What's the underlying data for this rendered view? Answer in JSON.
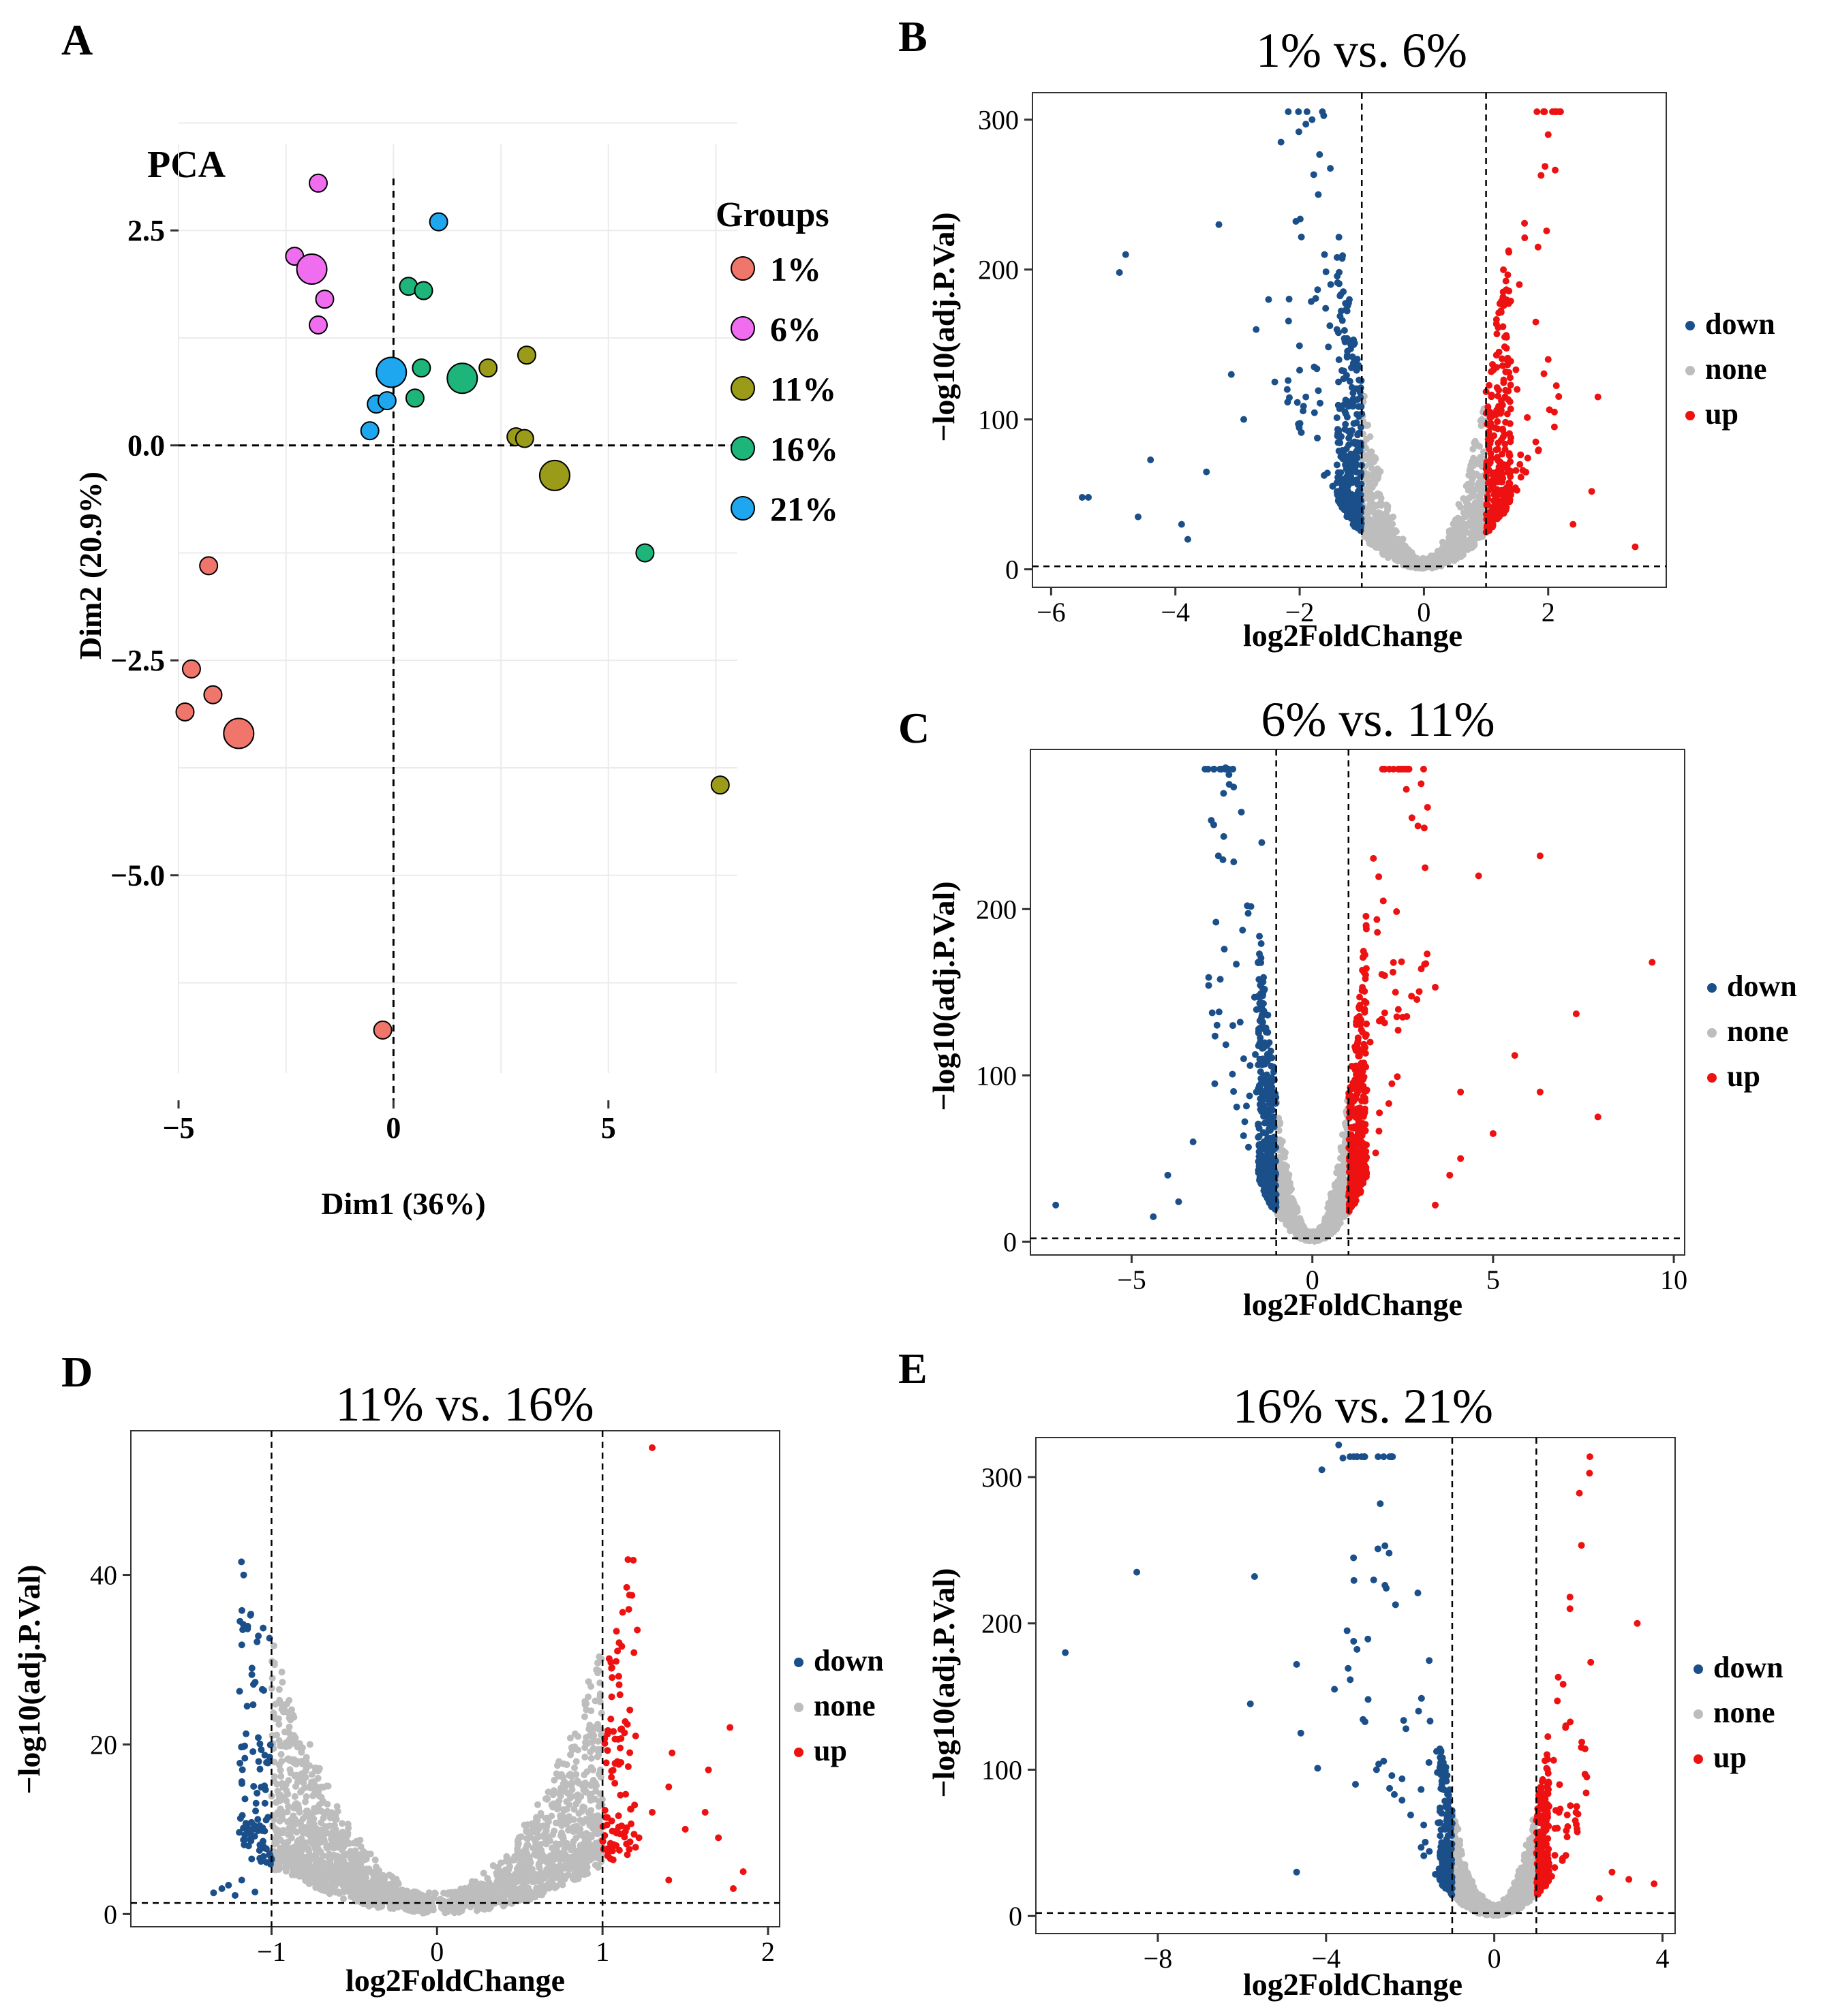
{
  "colors": {
    "down": "#1b4f8a",
    "none": "#bdbdbd",
    "up": "#ee1111",
    "1%": "#f0756b",
    "6%": "#f06df0",
    "11%": "#9b9b1a",
    "16%": "#1eb57a",
    "21%": "#1ea7ee"
  },
  "chart_data": [
    {
      "id": "A",
      "type": "scatter",
      "panel_letter": "A",
      "title": "PCA",
      "xlabel": "Dim1 (36%)",
      "ylabel": "Dim2 (20.9%)",
      "xlim": [
        -5,
        8
      ],
      "ylim": [
        -7.3,
        3.5
      ],
      "xticks": [
        -5,
        0,
        5
      ],
      "xtick_labels": [
        "−5",
        "0",
        "5"
      ],
      "yticks": [
        2.5,
        0,
        -2.5,
        -5
      ],
      "ytick_labels": [
        "2.5",
        "0.0",
        "−2.5",
        "−5.0"
      ],
      "legend_title": "Groups",
      "legend": [
        "1%",
        "6%",
        "11%",
        "16%",
        "21%"
      ],
      "series": [
        {
          "name": "1%",
          "points": [
            [
              -4.3,
              -1.4
            ],
            [
              -4.7,
              -2.6
            ],
            [
              -4.2,
              -2.9
            ],
            [
              -4.85,
              -3.1
            ],
            [
              -0.25,
              -6.8
            ]
          ],
          "centroid": [
            -3.6,
            -3.35
          ]
        },
        {
          "name": "6%",
          "points": [
            [
              -1.75,
              3.05
            ],
            [
              -2.3,
              2.2
            ],
            [
              -1.6,
              1.7
            ],
            [
              -1.75,
              1.4
            ]
          ],
          "centroid": [
            -1.9,
            2.05
          ]
        },
        {
          "name": "11%",
          "points": [
            [
              2.2,
              0.9
            ],
            [
              3.1,
              1.05
            ],
            [
              2.85,
              0.1
            ],
            [
              3.05,
              0.08
            ],
            [
              7.6,
              -3.95
            ]
          ],
          "centroid": [
            3.75,
            -0.35
          ]
        },
        {
          "name": "16%",
          "points": [
            [
              0.35,
              1.85
            ],
            [
              0.7,
              1.8
            ],
            [
              0.65,
              0.9
            ],
            [
              0.5,
              0.55
            ],
            [
              5.85,
              -1.25
            ]
          ],
          "centroid": [
            1.6,
            0.78
          ]
        },
        {
          "name": "21%",
          "points": [
            [
              1.05,
              2.6
            ],
            [
              -0.4,
              0.48
            ],
            [
              -0.15,
              0.52
            ],
            [
              -0.55,
              0.17
            ]
          ],
          "centroid": [
            -0.05,
            0.85
          ]
        }
      ]
    },
    {
      "id": "B",
      "type": "scatter",
      "panel_letter": "B",
      "title": "1% vs. 6%",
      "xlabel": "log2FoldChange",
      "ylabel": "−log10(adj.P.Val)",
      "xlim": [
        -6.3,
        3.9
      ],
      "ylim": [
        -12,
        318
      ],
      "xticks": [
        -6,
        -4,
        -2,
        0,
        2
      ],
      "xtick_labels": [
        "−6",
        "−4",
        "−2",
        "0",
        "2"
      ],
      "yticks": [
        0,
        100,
        200,
        300
      ],
      "ytick_labels": [
        "0",
        "100",
        "200",
        "300"
      ],
      "fc_threshold": 1,
      "p_line": 2,
      "legend": [
        "down",
        "none",
        "up"
      ],
      "highlights": {
        "down": [
          [
            -1.8,
            300
          ],
          [
            -1.9,
            297
          ],
          [
            -2.3,
            285
          ],
          [
            -1.7,
            250
          ],
          [
            -3.3,
            230
          ],
          [
            -4.8,
            210
          ],
          [
            -4.9,
            198
          ],
          [
            -1.5,
            190
          ],
          [
            -1.6,
            210
          ],
          [
            -2.5,
            180
          ],
          [
            -1.2,
            180
          ],
          [
            -2.7,
            160
          ],
          [
            -1.4,
            160
          ],
          [
            -3.1,
            130
          ],
          [
            -2.4,
            125
          ],
          [
            -5.5,
            48
          ],
          [
            -5.4,
            48
          ],
          [
            -4.4,
            73
          ],
          [
            -3.5,
            65
          ],
          [
            -3.9,
            30
          ],
          [
            -4.6,
            35
          ],
          [
            -2.9,
            100
          ],
          [
            -2.2,
            120
          ],
          [
            -1.9,
            115
          ],
          [
            -3.8,
            20
          ]
        ],
        "up": [
          [
            2.0,
            290
          ],
          [
            1.8,
            165
          ],
          [
            1.3,
            155
          ],
          [
            2.0,
            140
          ],
          [
            2.8,
            115
          ],
          [
            1.5,
            120
          ],
          [
            2.1,
            95
          ],
          [
            1.1,
            95
          ],
          [
            1.8,
            85
          ],
          [
            3.4,
            15
          ],
          [
            2.7,
            52
          ],
          [
            2.4,
            30
          ]
        ]
      }
    },
    {
      "id": "C",
      "type": "scatter",
      "panel_letter": "C",
      "title": "6% vs. 11%",
      "xlabel": "log2FoldChange",
      "ylabel": "−log10(adj.P.Val)",
      "xlim": [
        -7.8,
        10.3
      ],
      "ylim": [
        -8,
        296
      ],
      "xticks": [
        -5,
        0,
        5,
        10
      ],
      "xtick_labels": [
        "−5",
        "0",
        "5",
        "10"
      ],
      "yticks": [
        0,
        100,
        200
      ],
      "ytick_labels": [
        "0",
        "100",
        "200"
      ],
      "fc_threshold": 1,
      "p_line": 2,
      "legend": [
        "down",
        "none",
        "up"
      ],
      "highlights": {
        "down": [
          [
            -2.4,
            285
          ],
          [
            -2.3,
            275
          ],
          [
            -1.4,
            240
          ],
          [
            -2.6,
            232
          ],
          [
            -1.8,
            202
          ],
          [
            -7.1,
            22
          ],
          [
            -4.4,
            15
          ],
          [
            -4.0,
            40
          ],
          [
            -3.3,
            60
          ],
          [
            -1.5,
            168
          ],
          [
            -1.6,
            147
          ],
          [
            -2.2,
            130
          ],
          [
            -2.7,
            95
          ],
          [
            -1.9,
            110
          ],
          [
            -3.7,
            24
          ]
        ],
        "up": [
          [
            2.6,
            272
          ],
          [
            6.3,
            232
          ],
          [
            4.6,
            220
          ],
          [
            9.4,
            168
          ],
          [
            7.3,
            137
          ],
          [
            1.8,
            186
          ],
          [
            3.4,
            153
          ],
          [
            2.0,
            160
          ],
          [
            2.5,
            135
          ],
          [
            2.3,
            150
          ],
          [
            5.6,
            112
          ],
          [
            6.3,
            90
          ],
          [
            7.9,
            75
          ],
          [
            5.0,
            65
          ],
          [
            4.1,
            50
          ],
          [
            3.8,
            40
          ],
          [
            3.4,
            22
          ],
          [
            1.6,
            120
          ],
          [
            2.2,
            95
          ],
          [
            4.1,
            90
          ]
        ]
      }
    },
    {
      "id": "D",
      "type": "scatter",
      "panel_letter": "D",
      "title": "11% vs. 16%",
      "xlabel": "log2FoldChange",
      "ylabel": "−log10(adj.P.Val)",
      "xlim": [
        -1.85,
        2.07
      ],
      "ylim": [
        -1.5,
        57
      ],
      "xticks": [
        -1,
        0,
        1,
        2
      ],
      "xtick_labels": [
        "−1",
        "0",
        "1",
        "2"
      ],
      "yticks": [
        0,
        20,
        40
      ],
      "ytick_labels": [
        "0",
        "20",
        "40"
      ],
      "fc_threshold": 1,
      "p_line": 1.3,
      "legend": [
        "down",
        "none",
        "up"
      ],
      "highlights": {
        "down": [
          [
            -1.05,
            8
          ],
          [
            -1.12,
            6.5
          ],
          [
            -1.3,
            3
          ],
          [
            -1.35,
            2.5
          ],
          [
            -1.18,
            4
          ],
          [
            -1.22,
            2.2
          ],
          [
            -1.1,
            2.6
          ],
          [
            -1.26,
            3.4
          ]
        ],
        "up": [
          [
            1.3,
            55
          ],
          [
            1.21,
            33.5
          ],
          [
            1.1,
            32
          ],
          [
            1.77,
            22
          ],
          [
            1.05,
            23
          ],
          [
            1.2,
            21
          ],
          [
            1.42,
            19
          ],
          [
            1.4,
            15
          ],
          [
            1.64,
            17
          ],
          [
            1.3,
            12
          ],
          [
            1.5,
            10
          ],
          [
            1.62,
            12
          ],
          [
            1.22,
            9
          ],
          [
            1.79,
            3
          ],
          [
            1.85,
            5
          ],
          [
            1.15,
            7
          ],
          [
            1.4,
            4
          ],
          [
            1.7,
            9
          ]
        ]
      }
    },
    {
      "id": "E",
      "type": "scatter",
      "panel_letter": "E",
      "title": "16% vs. 21%",
      "xlabel": "log2FoldChange",
      "ylabel": "−log10(adj.P.Val)",
      "xlim": [
        -10.9,
        4.3
      ],
      "ylim": [
        -12,
        327
      ],
      "xticks": [
        -8,
        -4,
        0,
        4
      ],
      "xtick_labels": [
        "−8",
        "−4",
        "0",
        "4"
      ],
      "yticks": [
        0,
        100,
        200,
        300
      ],
      "ytick_labels": [
        "0",
        "100",
        "200",
        "300"
      ],
      "fc_threshold": 1,
      "p_line": 2,
      "legend": [
        "down",
        "none",
        "up"
      ],
      "highlights": {
        "down": [
          [
            -10.2,
            180
          ],
          [
            -8.5,
            235
          ],
          [
            -5.7,
            232
          ],
          [
            -4.1,
            305
          ],
          [
            -3.6,
            313
          ],
          [
            -3.7,
            322
          ],
          [
            -2.6,
            253
          ],
          [
            -2.5,
            248
          ],
          [
            -2.6,
            226
          ],
          [
            -3.5,
            195
          ],
          [
            -4.7,
            172
          ],
          [
            -5.8,
            145
          ],
          [
            -3.8,
            155
          ],
          [
            -3.0,
            148
          ],
          [
            -4.6,
            125
          ],
          [
            -4.2,
            101
          ],
          [
            -1.8,
            140
          ],
          [
            -2.1,
            128
          ],
          [
            -3.3,
            90
          ],
          [
            -2.8,
            100
          ],
          [
            -4.7,
            30
          ]
        ],
        "up": [
          [
            1.8,
            218
          ],
          [
            1.8,
            210
          ],
          [
            3.4,
            200
          ],
          [
            1.5,
            147
          ],
          [
            1.7,
            130
          ],
          [
            2.2,
            95
          ],
          [
            1.3,
            75
          ],
          [
            1.5,
            60
          ],
          [
            3.8,
            22
          ],
          [
            2.5,
            12
          ],
          [
            2.8,
            30
          ],
          [
            3.2,
            25
          ]
        ]
      }
    }
  ]
}
